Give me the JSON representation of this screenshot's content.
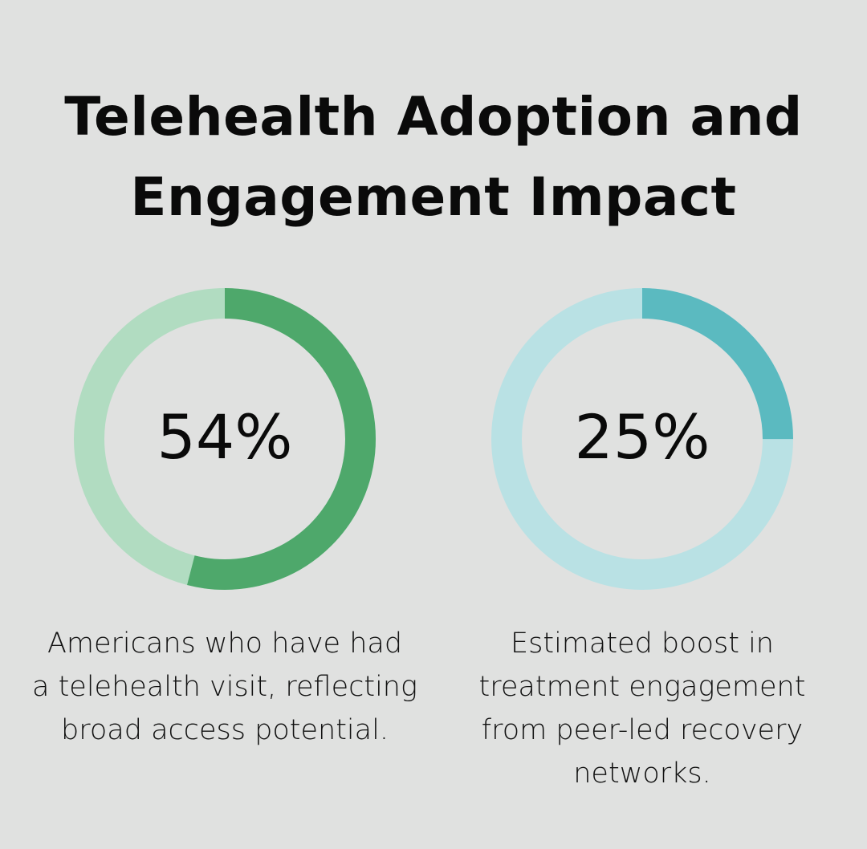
{
  "title": {
    "line1": "Telehealth Adoption and",
    "line2": "Engagement Impact"
  },
  "chart_data": [
    {
      "type": "donut",
      "value": 54,
      "max": 100,
      "label": "54%",
      "description_lines": [
        "Americans who have had",
        "a telehealth visit, reflecting",
        "broad access potential."
      ],
      "colors": {
        "filled": "#4ea86b",
        "track": "#b1dcc1"
      }
    },
    {
      "type": "donut",
      "value": 25,
      "max": 100,
      "label": "25%",
      "description_lines": [
        "Estimated boost in",
        "treatment engagement",
        "from peer-led recovery",
        "networks."
      ],
      "colors": {
        "filled": "#5bbac0",
        "track": "#b9e1e4"
      }
    }
  ]
}
